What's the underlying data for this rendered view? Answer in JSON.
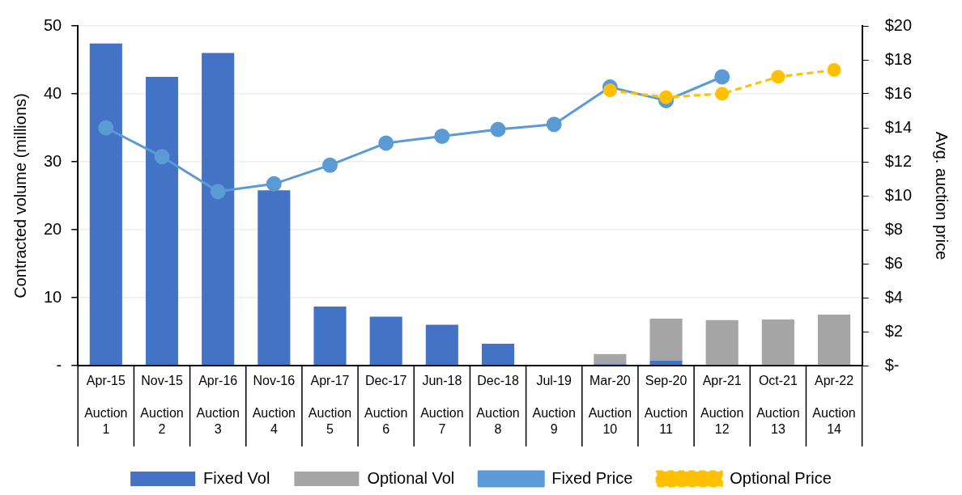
{
  "chart_data": {
    "type": "bar",
    "stacked": true,
    "ylabel": "Contracted volume (millions)",
    "y2label": "Avg. auction price",
    "categories": [
      "Apr-15 Auction 1",
      "Nov-15 Auction 2",
      "Apr-16 Auction 3",
      "Nov-16 Auction 4",
      "Apr-17 Auction 5",
      "Dec-17 Auction 6",
      "Jun-18 Auction 7",
      "Dec-18 Auction 8",
      "Jul-19 Auction 9",
      "Mar-20 Auction 10",
      "Sep-20 Auction 11",
      "Apr-21 Auction 12",
      "Oct-21 Auction 13",
      "Apr-22 Auction 14"
    ],
    "series": [
      {
        "name": "Fixed Vol",
        "color": "#4472c4",
        "values": [
          47.4,
          42.5,
          46.0,
          25.8,
          8.7,
          7.2,
          6.0,
          3.2,
          0,
          0.2,
          0.7,
          0,
          0,
          0
        ]
      },
      {
        "name": "Optional Vol",
        "color": "#a5a5a5",
        "values": [
          0,
          0,
          0,
          0,
          0,
          0,
          0,
          0,
          0,
          1.5,
          6.2,
          6.7,
          6.8,
          7.5
        ]
      },
      {
        "name": "Fixed Price",
        "type": "line",
        "axis": "y2",
        "color": "#5b9bd5",
        "marker": "circle",
        "line_style": "solid",
        "values": [
          14.0,
          12.3,
          10.25,
          10.7,
          11.8,
          13.1,
          13.5,
          13.9,
          14.2,
          16.4,
          15.6,
          17.0,
          null,
          null
        ]
      },
      {
        "name": "Optional Price",
        "type": "line",
        "axis": "y2",
        "color": "#ffc000",
        "marker": "circle",
        "line_style": "dashed",
        "values": [
          null,
          null,
          null,
          null,
          null,
          null,
          null,
          null,
          null,
          16.2,
          15.8,
          16.0,
          17.0,
          17.4
        ]
      }
    ],
    "ylim": [
      0,
      50
    ],
    "yticks": [
      {
        "value": 0,
        "label": "-"
      },
      10,
      20,
      30,
      40,
      50
    ],
    "y2lim": [
      0,
      20
    ],
    "y2ticks": [
      {
        "value": 0,
        "label": "$-"
      },
      {
        "value": 2,
        "label": "$2"
      },
      {
        "value": 4,
        "label": "$4"
      },
      {
        "value": 6,
        "label": "$6"
      },
      {
        "value": 8,
        "label": "$8"
      },
      {
        "value": 10,
        "label": "$10"
      },
      {
        "value": 12,
        "label": "$12"
      },
      {
        "value": 14,
        "label": "$14"
      },
      {
        "value": 16,
        "label": "$16"
      },
      {
        "value": 18,
        "label": "$18"
      },
      {
        "value": 20,
        "label": "$20"
      }
    ],
    "grid": "y",
    "legend": "bottom"
  }
}
